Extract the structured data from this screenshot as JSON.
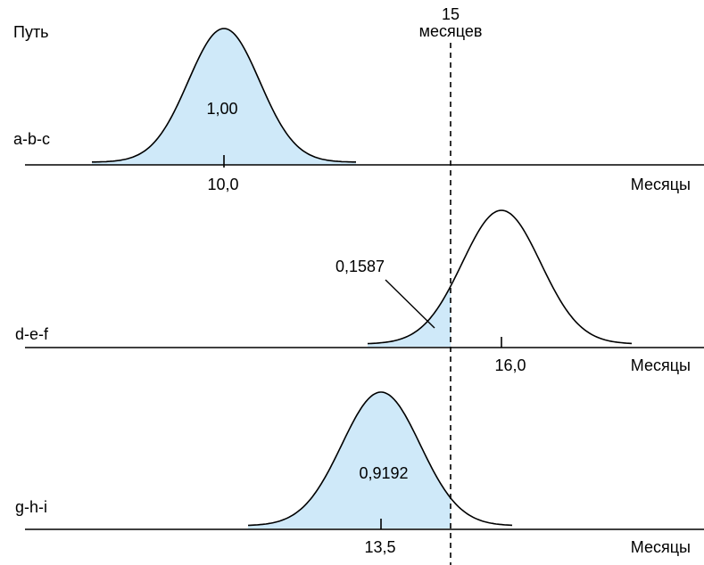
{
  "header": {
    "path_label": "Путь",
    "deadline_value": "15",
    "deadline_unit": "месяцев"
  },
  "colors": {
    "fill": "#cfe9f9",
    "line": "#000000"
  },
  "deadline_months": 15,
  "panels": [
    {
      "path": "a-b-c",
      "mean": 10.0,
      "mean_label": "10,0",
      "probability": 1.0,
      "probability_label": "1,00",
      "axis_label": "Месяцы"
    },
    {
      "path": "d-e-f",
      "mean": 16.0,
      "mean_label": "16,0",
      "probability": 0.1587,
      "probability_label": "0,1587",
      "axis_label": "Месяцы"
    },
    {
      "path": "g-h-i",
      "mean": 13.5,
      "mean_label": "13,5",
      "probability": 0.9192,
      "probability_label": "0,9192",
      "axis_label": "Месяцы"
    }
  ]
}
